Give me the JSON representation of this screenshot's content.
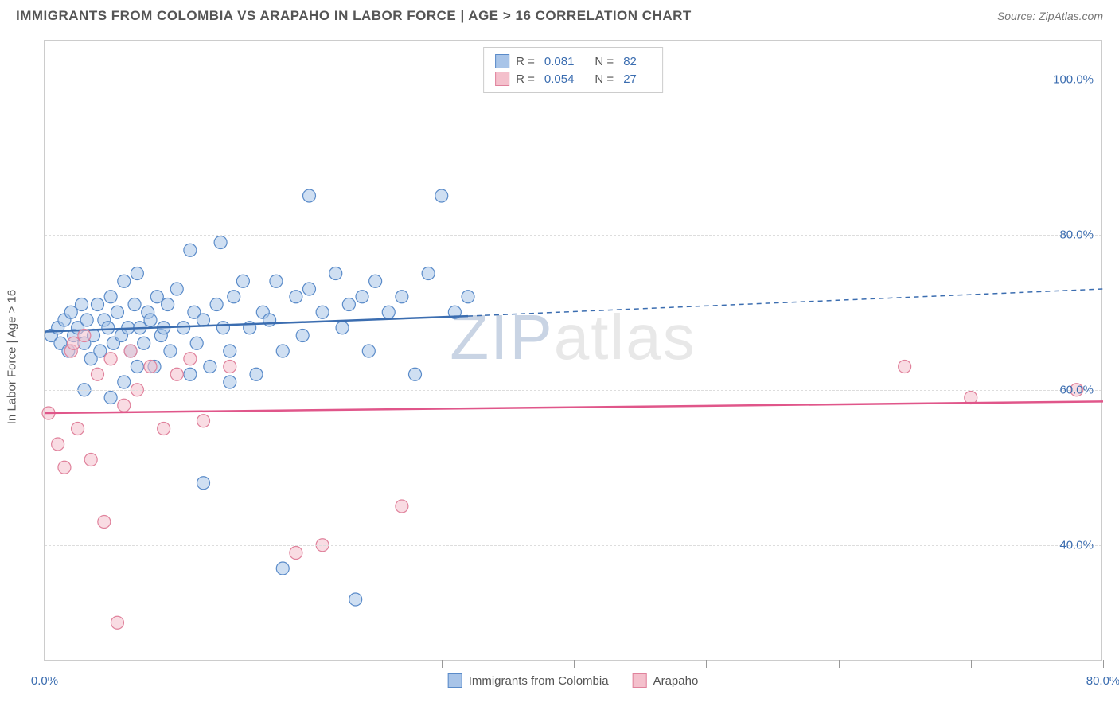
{
  "header": {
    "title": "IMMIGRANTS FROM COLOMBIA VS ARAPAHO IN LABOR FORCE | AGE > 16 CORRELATION CHART",
    "source_prefix": "Source: ",
    "source_name": "ZipAtlas.com"
  },
  "chart": {
    "type": "scatter",
    "y_axis_label": "In Labor Force | Age > 16",
    "background_color": "#ffffff",
    "grid_color": "#dddddd",
    "border_color": "#cccccc",
    "xlim": [
      0,
      80
    ],
    "ylim": [
      25,
      105
    ],
    "x_ticks": [
      0,
      10,
      20,
      30,
      40,
      50,
      60,
      70,
      80
    ],
    "x_labels": {
      "0": "0.0%",
      "80": "80.0%"
    },
    "y_gridlines": [
      40,
      60,
      80,
      100
    ],
    "y_labels": {
      "40": "40.0%",
      "60": "60.0%",
      "80": "80.0%",
      "100": "100.0%"
    },
    "marker_radius": 8,
    "marker_stroke_width": 1.2,
    "watermark": {
      "part1": "ZIP",
      "part2": "atlas"
    },
    "series": [
      {
        "name": "Immigrants from Colombia",
        "key": "colombia",
        "fill": "#a8c4e8",
        "stroke": "#5a8bc9",
        "fill_opacity": 0.55,
        "R": "0.081",
        "N": "82",
        "trend": {
          "x1": 0,
          "y1": 67.5,
          "x2": 32,
          "y2": 69.5,
          "x2_ext": 80,
          "y2_ext": 73,
          "color": "#3b6db0",
          "width": 2.5
        },
        "points": [
          [
            0.5,
            67
          ],
          [
            1,
            68
          ],
          [
            1.2,
            66
          ],
          [
            1.5,
            69
          ],
          [
            1.8,
            65
          ],
          [
            2,
            70
          ],
          [
            2.2,
            67
          ],
          [
            2.5,
            68
          ],
          [
            2.8,
            71
          ],
          [
            3,
            66
          ],
          [
            3.2,
            69
          ],
          [
            3.5,
            64
          ],
          [
            3.7,
            67
          ],
          [
            4,
            71
          ],
          [
            4.2,
            65
          ],
          [
            4.5,
            69
          ],
          [
            4.8,
            68
          ],
          [
            5,
            72
          ],
          [
            5.2,
            66
          ],
          [
            5.5,
            70
          ],
          [
            5.8,
            67
          ],
          [
            6,
            74
          ],
          [
            6.3,
            68
          ],
          [
            6.5,
            65
          ],
          [
            6.8,
            71
          ],
          [
            7,
            75
          ],
          [
            7.2,
            68
          ],
          [
            7.5,
            66
          ],
          [
            7.8,
            70
          ],
          [
            8,
            69
          ],
          [
            8.3,
            63
          ],
          [
            8.5,
            72
          ],
          [
            8.8,
            67
          ],
          [
            9,
            68
          ],
          [
            9.3,
            71
          ],
          [
            9.5,
            65
          ],
          [
            10,
            73
          ],
          [
            10.5,
            68
          ],
          [
            11,
            78
          ],
          [
            11.3,
            70
          ],
          [
            11.5,
            66
          ],
          [
            12,
            69
          ],
          [
            12.5,
            63
          ],
          [
            13,
            71
          ],
          [
            13.3,
            79
          ],
          [
            13.5,
            68
          ],
          [
            14,
            65
          ],
          [
            14.3,
            72
          ],
          [
            15,
            74
          ],
          [
            15.5,
            68
          ],
          [
            16,
            62
          ],
          [
            16.5,
            70
          ],
          [
            17,
            69
          ],
          [
            17.5,
            74
          ],
          [
            18,
            65
          ],
          [
            19,
            72
          ],
          [
            19.5,
            67
          ],
          [
            20,
            85
          ],
          [
            20,
            73
          ],
          [
            21,
            70
          ],
          [
            22,
            75
          ],
          [
            22.5,
            68
          ],
          [
            23,
            71
          ],
          [
            23.5,
            33
          ],
          [
            24,
            72
          ],
          [
            24.5,
            65
          ],
          [
            25,
            74
          ],
          [
            26,
            70
          ],
          [
            27,
            72
          ],
          [
            28,
            62
          ],
          [
            29,
            75
          ],
          [
            30,
            85
          ],
          [
            31,
            70
          ],
          [
            32,
            72
          ],
          [
            5,
            59
          ],
          [
            6,
            61
          ],
          [
            12,
            48
          ],
          [
            7,
            63
          ],
          [
            18,
            37
          ],
          [
            11,
            62
          ],
          [
            14,
            61
          ],
          [
            3,
            60
          ]
        ]
      },
      {
        "name": "Arapaho",
        "key": "arapaho",
        "fill": "#f4c0cc",
        "stroke": "#e0829c",
        "fill_opacity": 0.55,
        "R": "0.054",
        "N": "27",
        "trend": {
          "x1": 0,
          "y1": 57,
          "x2": 80,
          "y2": 58.5,
          "color": "#e0568a",
          "width": 2.5
        },
        "points": [
          [
            0.3,
            57
          ],
          [
            1,
            53
          ],
          [
            1.5,
            50
          ],
          [
            2,
            65
          ],
          [
            2.5,
            55
          ],
          [
            3,
            67
          ],
          [
            3.5,
            51
          ],
          [
            4,
            62
          ],
          [
            4.5,
            43
          ],
          [
            5,
            64
          ],
          [
            5.5,
            30
          ],
          [
            6,
            58
          ],
          [
            6.5,
            65
          ],
          [
            7,
            60
          ],
          [
            8,
            63
          ],
          [
            9,
            55
          ],
          [
            10,
            62
          ],
          [
            11,
            64
          ],
          [
            12,
            56
          ],
          [
            14,
            63
          ],
          [
            19,
            39
          ],
          [
            21,
            40
          ],
          [
            27,
            45
          ],
          [
            65,
            63
          ],
          [
            70,
            59
          ],
          [
            78,
            60
          ],
          [
            2.2,
            66
          ]
        ]
      }
    ],
    "legend_top": {
      "R_label": "R  =",
      "N_label": "N  ="
    },
    "legend_bottom": [
      {
        "label": "Immigrants from Colombia",
        "fill": "#a8c4e8",
        "stroke": "#5a8bc9"
      },
      {
        "label": "Arapaho",
        "fill": "#f4c0cc",
        "stroke": "#e0829c"
      }
    ]
  }
}
